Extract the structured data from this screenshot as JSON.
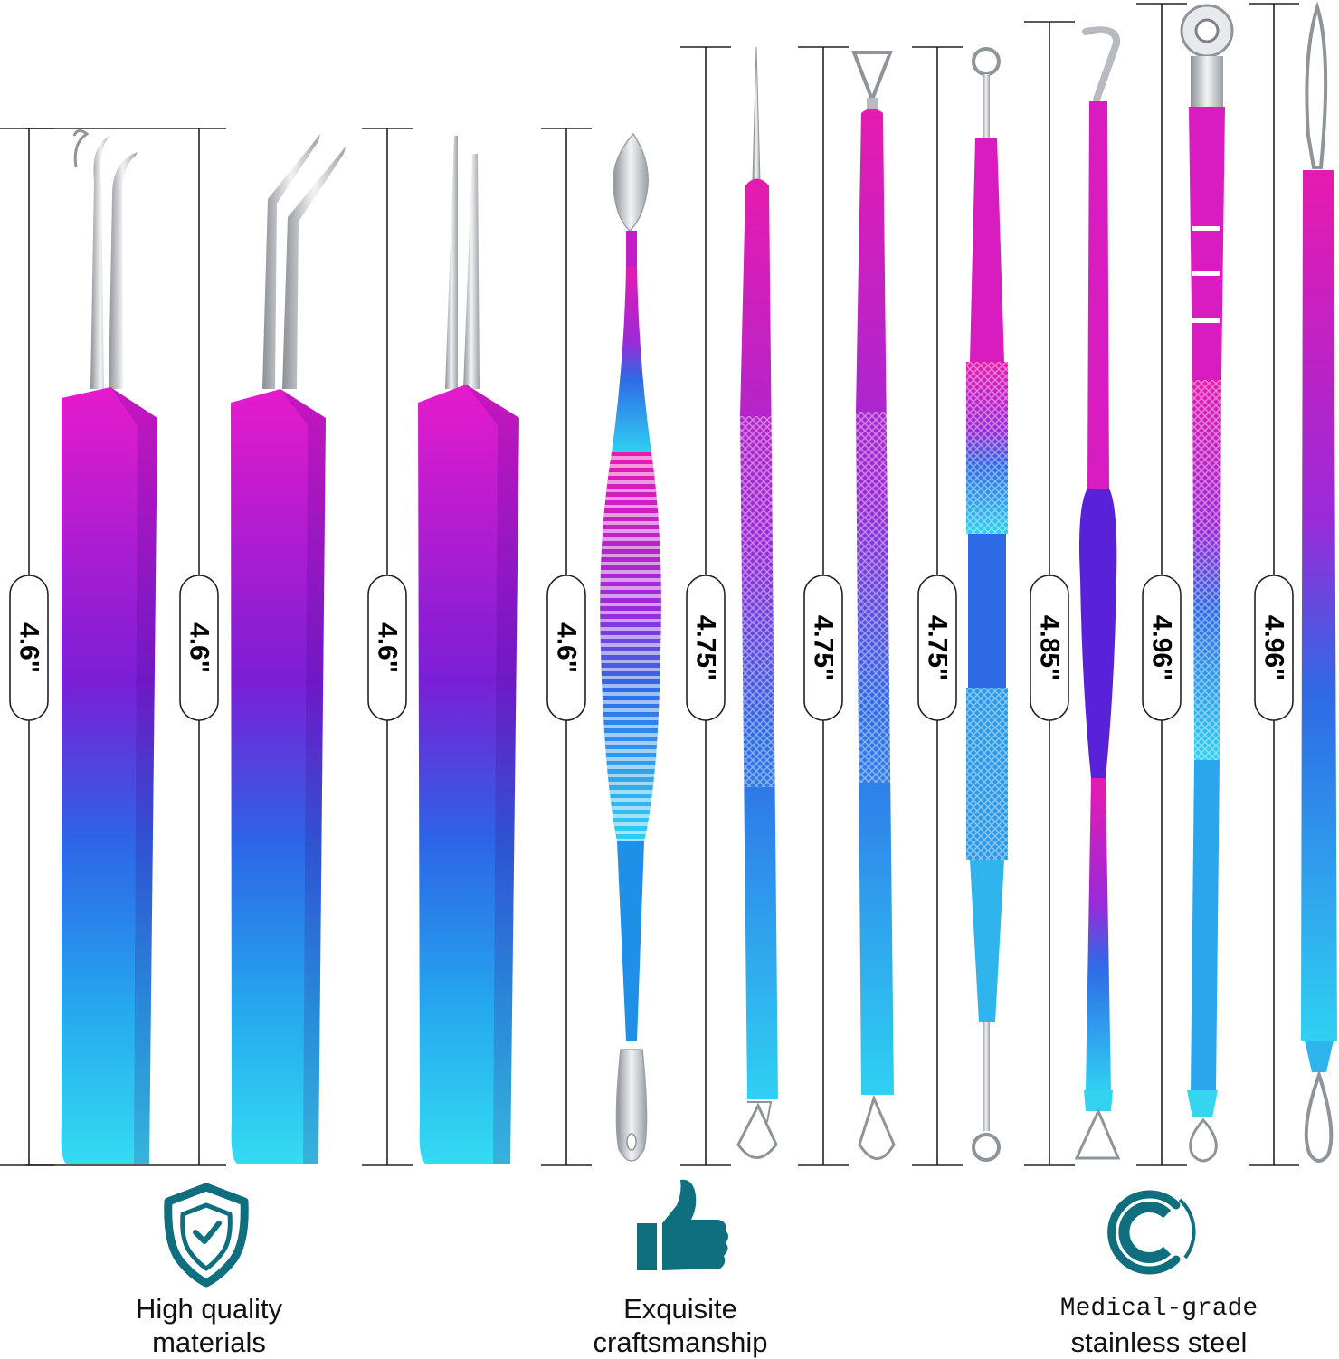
{
  "colors": {
    "pink": "#e11bd0",
    "purple": "#6a1fd8",
    "blue": "#1e7de8",
    "cyan": "#2fd4f0",
    "steel": "#c9cdd2",
    "teal_icon": "#0f6f7e",
    "line": "#222222"
  },
  "tools": [
    {
      "name": "curved-tweezers",
      "length_label": "4.6\""
    },
    {
      "name": "angled-tweezers",
      "length_label": "4.6\""
    },
    {
      "name": "straight-tweezers",
      "length_label": "4.6\""
    },
    {
      "name": "spatula-loop-tool",
      "length_label": "4.6\""
    },
    {
      "name": "needle-loop-tool",
      "length_label": "4.75\""
    },
    {
      "name": "triangle-loop-tool",
      "length_label": "4.75\""
    },
    {
      "name": "double-ring-tool",
      "length_label": "4.75\""
    },
    {
      "name": "hook-loop-tool",
      "length_label": "4.85\""
    },
    {
      "name": "round-scoop-tool",
      "length_label": "4.96\""
    },
    {
      "name": "double-loop-tool",
      "length_label": "4.96\""
    }
  ],
  "features": [
    {
      "icon": "shield-check-icon",
      "text": "High quality\nmaterials"
    },
    {
      "icon": "thumbs-up-icon",
      "text": "Exquisite\ncraftsmanship"
    },
    {
      "icon": "circle-c-icon",
      "text_line1": "Medical-grade",
      "text_line2": "stainless steel"
    }
  ]
}
